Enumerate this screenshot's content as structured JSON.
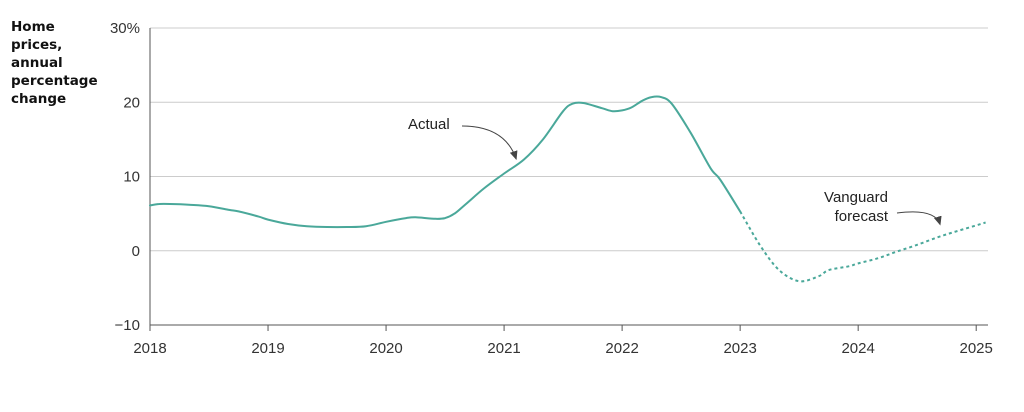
{
  "chart_data": {
    "type": "line",
    "ylabel": "Home\nprices,\nannual\npercentage\nchange",
    "xlabel": "",
    "ylim": [
      -10,
      30
    ],
    "xlim": [
      2018,
      2025.1
    ],
    "y_ticks": [
      {
        "value": 30,
        "label": "30%"
      },
      {
        "value": 20,
        "label": "20"
      },
      {
        "value": 10,
        "label": "10"
      },
      {
        "value": 0,
        "label": "0"
      },
      {
        "value": -10,
        "label": "−10"
      }
    ],
    "x_ticks": [
      {
        "value": 2018,
        "label": "2018"
      },
      {
        "value": 2019,
        "label": "2019"
      },
      {
        "value": 2020,
        "label": "2020"
      },
      {
        "value": 2021,
        "label": "2021"
      },
      {
        "value": 2022,
        "label": "2022"
      },
      {
        "value": 2023,
        "label": "2023"
      },
      {
        "value": 2024,
        "label": "2024"
      },
      {
        "value": 2025,
        "label": "2025"
      }
    ],
    "grid": true,
    "colors": {
      "line": "#4aa89a",
      "grid": "#cccccc",
      "axis": "#555555",
      "arrow": "#444444"
    },
    "series": [
      {
        "name": "Actual",
        "style": "solid",
        "points": [
          [
            2018.0,
            6.1
          ],
          [
            2018.08,
            6.3
          ],
          [
            2018.17,
            6.3
          ],
          [
            2018.33,
            6.2
          ],
          [
            2018.5,
            6.0
          ],
          [
            2018.67,
            5.5
          ],
          [
            2018.75,
            5.3
          ],
          [
            2018.92,
            4.6
          ],
          [
            2019.0,
            4.2
          ],
          [
            2019.17,
            3.6
          ],
          [
            2019.33,
            3.3
          ],
          [
            2019.5,
            3.2
          ],
          [
            2019.67,
            3.2
          ],
          [
            2019.83,
            3.3
          ],
          [
            2020.0,
            3.9
          ],
          [
            2020.17,
            4.4
          ],
          [
            2020.25,
            4.5
          ],
          [
            2020.42,
            4.3
          ],
          [
            2020.5,
            4.4
          ],
          [
            2020.58,
            5.0
          ],
          [
            2020.67,
            6.2
          ],
          [
            2020.83,
            8.4
          ],
          [
            2021.0,
            10.4
          ],
          [
            2021.17,
            12.3
          ],
          [
            2021.33,
            15.0
          ],
          [
            2021.5,
            18.8
          ],
          [
            2021.58,
            19.8
          ],
          [
            2021.67,
            19.9
          ],
          [
            2021.83,
            19.2
          ],
          [
            2021.92,
            18.8
          ],
          [
            2022.0,
            18.9
          ],
          [
            2022.08,
            19.3
          ],
          [
            2022.17,
            20.2
          ],
          [
            2022.25,
            20.7
          ],
          [
            2022.33,
            20.7
          ],
          [
            2022.42,
            19.8
          ],
          [
            2022.58,
            15.9
          ],
          [
            2022.75,
            11.1
          ],
          [
            2022.83,
            9.6
          ],
          [
            2023.0,
            5.3
          ]
        ]
      },
      {
        "name": "Vanguard forecast",
        "style": "dashed",
        "points": [
          [
            2023.0,
            5.3
          ],
          [
            2023.17,
            0.7
          ],
          [
            2023.33,
            -2.6
          ],
          [
            2023.5,
            -4.1
          ],
          [
            2023.67,
            -3.4
          ],
          [
            2023.75,
            -2.6
          ],
          [
            2023.92,
            -2.1
          ],
          [
            2024.0,
            -1.7
          ],
          [
            2024.17,
            -1.0
          ],
          [
            2024.33,
            -0.1
          ],
          [
            2024.5,
            0.8
          ],
          [
            2024.67,
            1.8
          ],
          [
            2024.83,
            2.6
          ],
          [
            2025.08,
            3.8
          ]
        ]
      }
    ],
    "annotations": [
      {
        "text": "Actual",
        "target": [
          2021.12,
          11.8
        ]
      },
      {
        "text": "Vanguard\nforecast",
        "target": [
          2024.72,
          3.0
        ]
      }
    ]
  }
}
